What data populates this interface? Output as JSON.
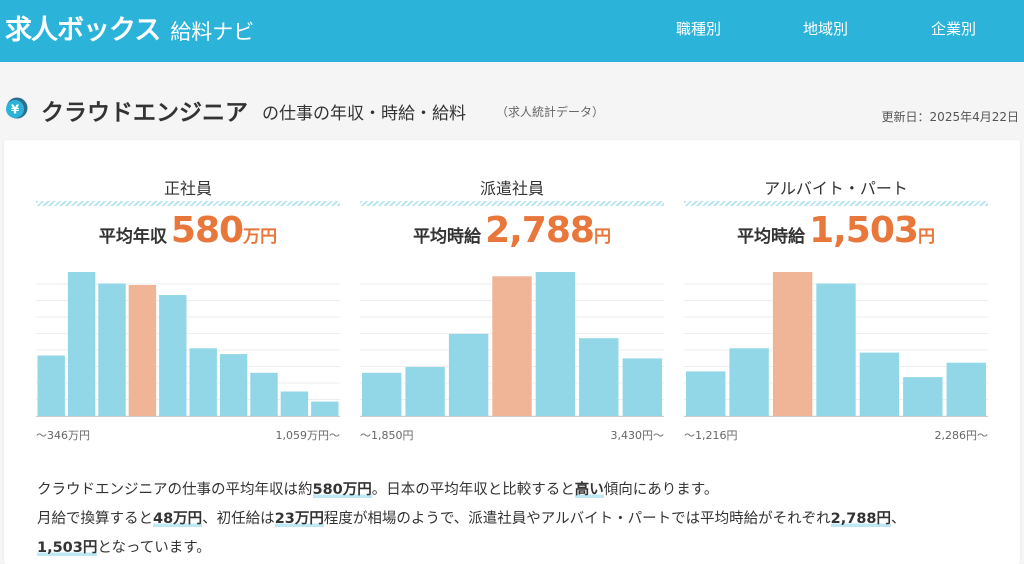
{
  "header": {
    "logo_main": "求人ボックス",
    "logo_sub": "給料ナビ",
    "nav": [
      "職種別",
      "地域別",
      "企業別"
    ]
  },
  "title": {
    "job": "クラウドエンジニア",
    "rest": "の仕事の年収・時給・給料",
    "note": "（求人統計データ）",
    "updated": "更新日：2025年4月22日"
  },
  "columns": [
    {
      "label": "正社員",
      "avg_label": "平均年収",
      "avg_value": "580",
      "avg_unit": "万円",
      "range_min": "～346万円",
      "range_max": "1,059万円～"
    },
    {
      "label": "派遣社員",
      "avg_label": "平均時給",
      "avg_value": "2,788",
      "avg_unit": "円",
      "range_min": "～1,850円",
      "range_max": "3,430円～"
    },
    {
      "label": "アルバイト・パート",
      "avg_label": "平均時給",
      "avg_value": "1,503",
      "avg_unit": "円",
      "range_min": "～1,216円",
      "range_max": "2,286円～"
    }
  ],
  "chart_data": [
    {
      "type": "bar",
      "values": [
        42,
        100,
        92,
        91,
        84,
        47,
        43,
        30,
        17,
        10
      ],
      "highlight_index": 3
    },
    {
      "type": "bar",
      "values": [
        30,
        34,
        57,
        97,
        100,
        54,
        40
      ],
      "highlight_index": 3
    },
    {
      "type": "bar",
      "values": [
        31,
        47,
        100,
        92,
        44,
        27,
        37
      ],
      "highlight_index": 2
    }
  ],
  "summary": {
    "l1a": "クラウドエンジニアの仕事の平均年収は約",
    "l1b": "580万円",
    "l1c": "。日本の平均年収と比較すると",
    "l1d": "高い",
    "l1e": "傾向にあります。",
    "l2a": "月給で換算すると",
    "l2b": "48万円",
    "l2c": "、初任給は",
    "l2d": "23万円",
    "l2e": "程度が相場のようで、派遣社員やアルバイト・パートでは平均時給がそれぞれ",
    "l2f": "2,788円",
    "l2g": "、",
    "l3a": "1,503円",
    "l3b": "となっています。"
  },
  "colors": {
    "header_bg": "#2cb3d9",
    "bar": "#92d7e8",
    "bar_highlight": "#f0b596",
    "accent": "#e8773b"
  }
}
